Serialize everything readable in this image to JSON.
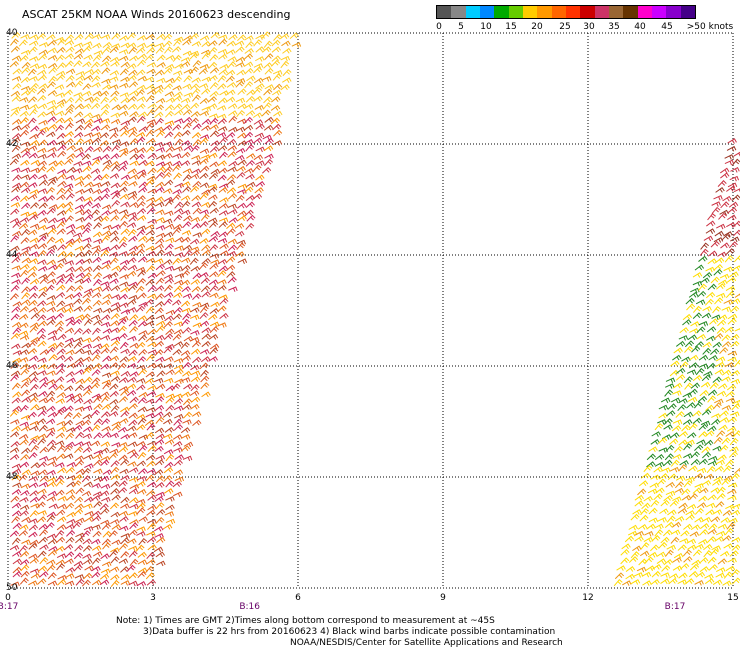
{
  "title": "ASCAT 25KM NOAA Winds 20160623 descending",
  "colorbar": {
    "colors": [
      "#555555",
      "#888888",
      "#00ccff",
      "#0088ff",
      "#00aa00",
      "#66cc00",
      "#ffcc00",
      "#ff9900",
      "#ff6600",
      "#ff3300",
      "#cc0000",
      "#cc3366",
      "#996633",
      "#663300",
      "#ff00cc",
      "#cc00ff",
      "#8800cc",
      "#440088"
    ],
    "labels": [
      "0",
      "5",
      "10",
      "15",
      "20",
      "25",
      "30",
      "35",
      "40",
      "45",
      ">50 knots"
    ]
  },
  "axes": {
    "y_ticks": [
      "40",
      "42",
      "44",
      "46",
      "48",
      "50"
    ],
    "x_ticks": [
      "0",
      "3",
      "6",
      "9",
      "12",
      "15"
    ]
  },
  "time_labels": [
    {
      "text": "B:17",
      "hour": 0
    },
    {
      "text": "B:16",
      "hour": 5
    },
    {
      "text": "B:17",
      "hour": 13.8
    }
  ],
  "notes": {
    "line1": "Note: 1) Times are GMT 2)Times along bottom correspond to measurement at ~45S",
    "line2": "3)Data buffer is 22 hrs from 20160623 4) Black wind barbs indicate possible contamination",
    "line3": "NOAA/NESDIS/Center for Satellite Applications and Research"
  },
  "swaths": [
    {
      "name": "west",
      "palette": [
        "#cc3344",
        "#dd5522",
        "#ee7711",
        "#cc2255",
        "#bb4422",
        "#ff9900"
      ]
    },
    {
      "name": "east",
      "palette": [
        "#ffdd00",
        "#ffee22",
        "#228822",
        "#33aa22",
        "#ddcc00",
        "#993311"
      ]
    }
  ]
}
